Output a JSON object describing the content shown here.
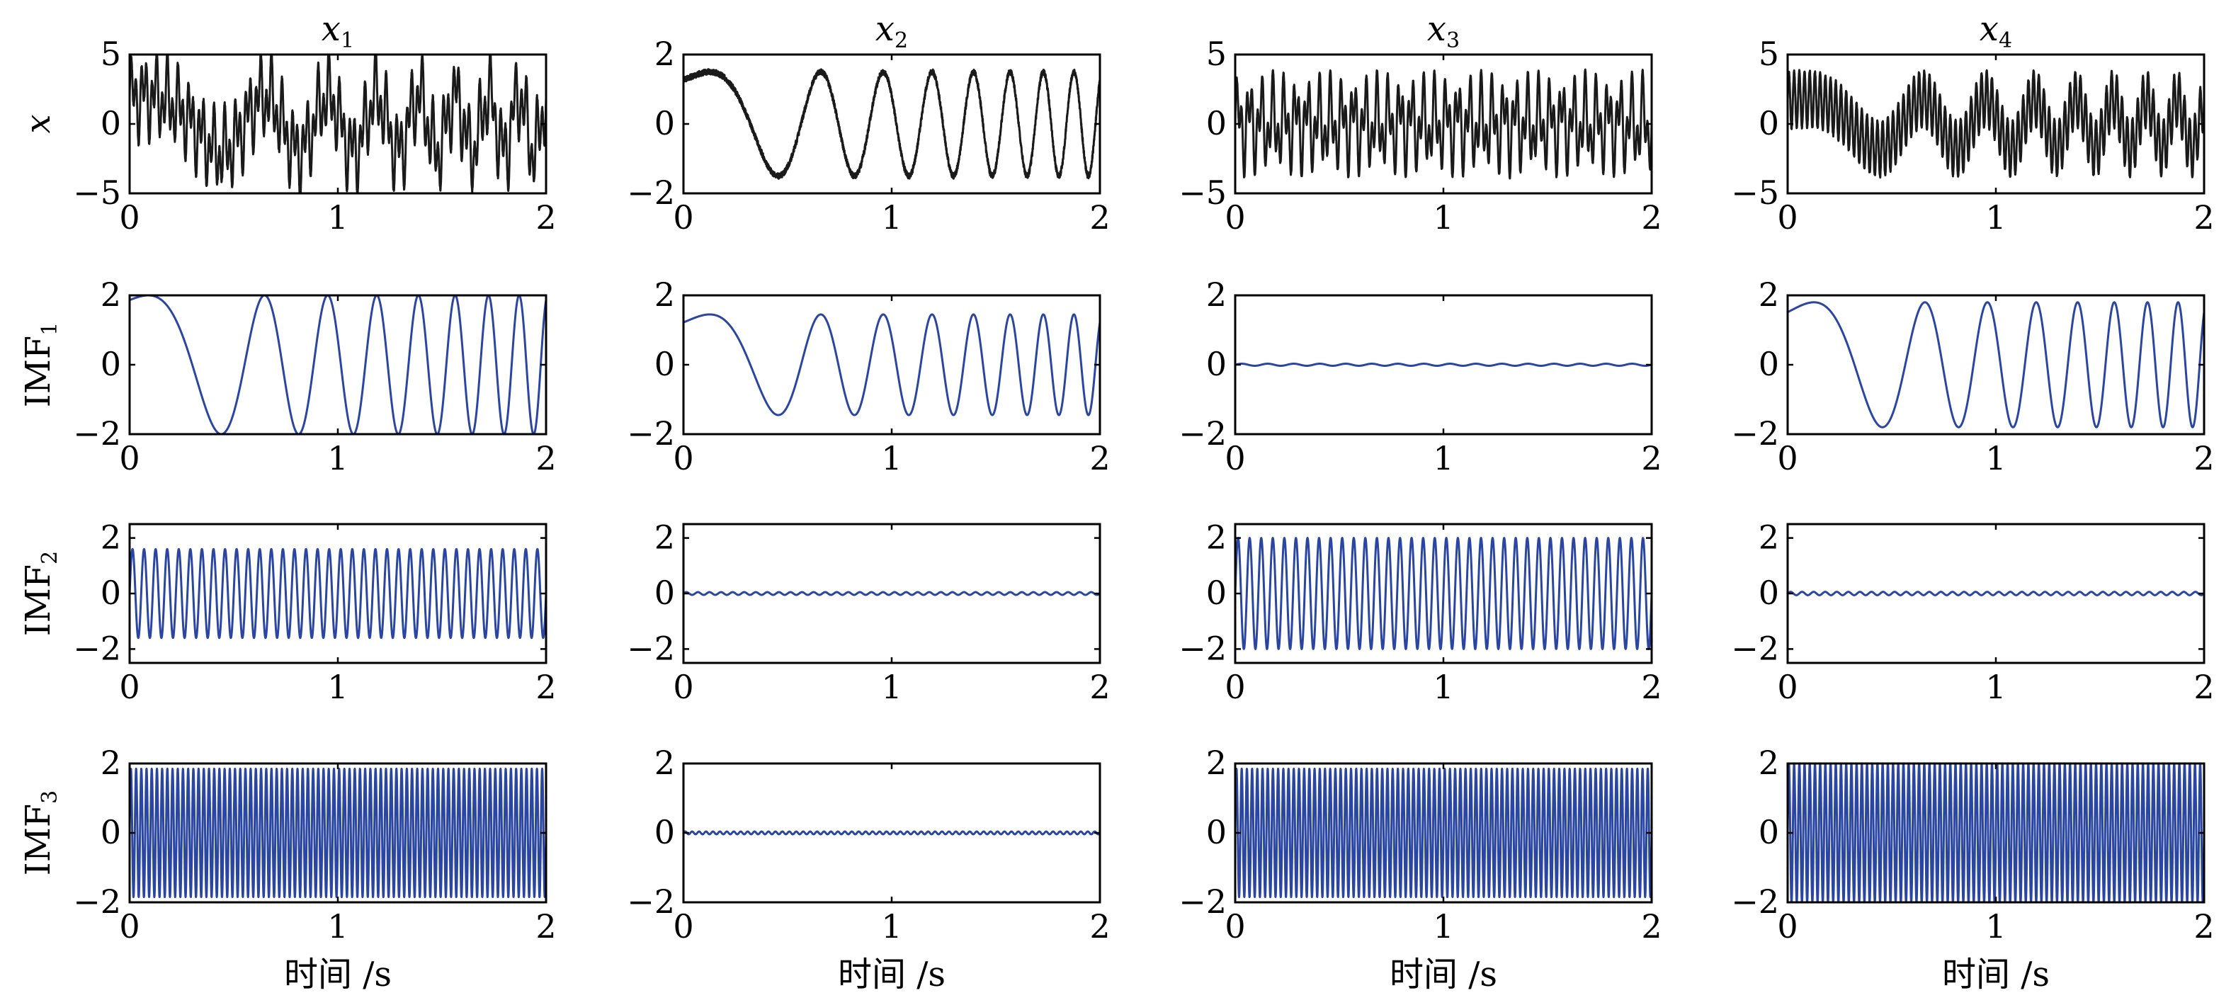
{
  "colors": {
    "signal": "#1a1a1a",
    "imf": "#2a46a0"
  },
  "chart_data": {
    "type": "line",
    "layout": "4x4 grid of subplots",
    "grid": false,
    "columns": [
      {
        "title": "x",
        "title_sub": "1"
      },
      {
        "title": "x",
        "title_sub": "2"
      },
      {
        "title": "x",
        "title_sub": "3"
      },
      {
        "title": "x",
        "title_sub": "4"
      }
    ],
    "rows": [
      {
        "label": "x",
        "label_sub": "",
        "italic": true,
        "color": "signal"
      },
      {
        "label": "IMF",
        "label_sub": "1",
        "italic": false,
        "color": "imf"
      },
      {
        "label": "IMF",
        "label_sub": "2",
        "italic": false,
        "color": "imf"
      },
      {
        "label": "IMF",
        "label_sub": "3",
        "italic": false,
        "color": "imf"
      }
    ],
    "xlabel": "时间 /s",
    "xlim": [
      0,
      2
    ],
    "xticks": [
      0,
      1,
      2
    ],
    "ylims": [
      [
        [
          -5,
          5
        ],
        [
          -2,
          2
        ],
        [
          -5,
          5
        ],
        [
          -5,
          5
        ]
      ],
      [
        [
          -2,
          2
        ],
        [
          -2,
          2
        ],
        [
          -2,
          2
        ],
        [
          -2,
          2
        ]
      ],
      [
        [
          -2.5,
          2.5
        ],
        [
          -2.5,
          2.5
        ],
        [
          -2.5,
          2.5
        ],
        [
          -2.5,
          2.5
        ]
      ],
      [
        [
          -2,
          2
        ],
        [
          -2,
          2
        ],
        [
          -2,
          2
        ],
        [
          -2,
          2
        ]
      ]
    ],
    "yticks": [
      [
        [
          -5,
          0,
          5
        ],
        [
          -2,
          0,
          2
        ],
        [
          -5,
          0,
          5
        ],
        [
          -5,
          0,
          5
        ]
      ],
      [
        [
          -2,
          0,
          2
        ],
        [
          -2,
          0,
          2
        ],
        [
          -2,
          0,
          2
        ],
        [
          -2,
          0,
          2
        ]
      ],
      [
        [
          -2,
          0,
          2
        ],
        [
          -2,
          0,
          2
        ],
        [
          -2,
          0,
          2
        ],
        [
          -2,
          0,
          2
        ]
      ],
      [
        [
          -2,
          0,
          2
        ],
        [
          -2,
          0,
          2
        ],
        [
          -2,
          0,
          2
        ],
        [
          -2,
          0,
          2
        ]
      ]
    ],
    "series": [
      [
        {
          "name": "x1",
          "components": [
            {
              "a": 2,
              "f0": 0.5,
              "k": 3.5,
              "p": 1.2
            },
            {
              "a": 1.6,
              "f0": 18,
              "k": 0,
              "p": 0
            },
            {
              "a": 1.85,
              "f0": 40,
              "k": 0,
              "p": 0
            }
          ],
          "noise": 0.15,
          "clip": 5
        },
        {
          "name": "x2",
          "components": [
            {
              "a": 1.5,
              "f0": 0.5,
              "k": 3.5,
              "p": 1.0
            }
          ],
          "noise": 0.08,
          "clip": 5
        },
        {
          "name": "x3",
          "components": [
            {
              "a": 2,
              "f0": 18,
              "k": 0,
              "p": 0
            },
            {
              "a": 1.85,
              "f0": 40,
              "k": 0,
              "p": 0
            }
          ],
          "noise": 0.1,
          "clip": 5
        },
        {
          "name": "x4",
          "components": [
            {
              "a": 1.8,
              "f0": 0.5,
              "k": 3.5,
              "p": 1.2
            },
            {
              "a": 2,
              "f0": 40,
              "k": 0,
              "p": 0
            }
          ],
          "noise": 0.12,
          "clip": 5
        }
      ],
      [
        {
          "name": "IMF1 of x1",
          "components": [
            {
              "a": 2,
              "f0": 0.5,
              "k": 3.5,
              "p": 1.2
            }
          ],
          "noise": 0,
          "clip": 5
        },
        {
          "name": "IMF1 of x2",
          "components": [
            {
              "a": 1.45,
              "f0": 0.5,
              "k": 3.5,
              "p": 1.0
            }
          ],
          "noise": 0,
          "clip": 5
        },
        {
          "name": "IMF1 of x3",
          "components": [
            {
              "a": 0.03,
              "f0": 8,
              "k": 0,
              "p": 0
            }
          ],
          "noise": 0,
          "clip": 5
        },
        {
          "name": "IMF1 of x4",
          "components": [
            {
              "a": 1.8,
              "f0": 0.5,
              "k": 3.5,
              "p": 1.0
            }
          ],
          "noise": 0,
          "clip": 5
        }
      ],
      [
        {
          "name": "IMF2 of x1",
          "components": [
            {
              "a": 1.6,
              "f0": 18,
              "k": 0,
              "p": 0
            }
          ],
          "noise": 0,
          "clip": 5
        },
        {
          "name": "IMF2 of x2",
          "components": [
            {
              "a": 0.05,
              "f0": 18,
              "k": 0,
              "p": 0
            }
          ],
          "noise": 0,
          "clip": 5
        },
        {
          "name": "IMF2 of x3",
          "components": [
            {
              "a": 2,
              "f0": 18,
              "k": 0,
              "p": 0
            }
          ],
          "noise": 0,
          "clip": 5
        },
        {
          "name": "IMF2 of x4",
          "components": [
            {
              "a": 0.06,
              "f0": 18,
              "k": 0,
              "p": 0
            }
          ],
          "noise": 0,
          "clip": 5
        }
      ],
      [
        {
          "name": "IMF3 of x1",
          "components": [
            {
              "a": 1.85,
              "f0": 40,
              "k": 0,
              "p": 0
            }
          ],
          "noise": 0,
          "clip": 5
        },
        {
          "name": "IMF3 of x2",
          "components": [
            {
              "a": 0.04,
              "f0": 30,
              "k": 0,
              "p": 0
            }
          ],
          "noise": 0,
          "clip": 5
        },
        {
          "name": "IMF3 of x3",
          "components": [
            {
              "a": 1.85,
              "f0": 40,
              "k": 0,
              "p": 0
            }
          ],
          "noise": 0,
          "clip": 5
        },
        {
          "name": "IMF3 of x4",
          "components": [
            {
              "a": 2,
              "f0": 40,
              "k": 0,
              "p": 0
            }
          ],
          "noise": 0,
          "clip": 5
        }
      ]
    ]
  }
}
